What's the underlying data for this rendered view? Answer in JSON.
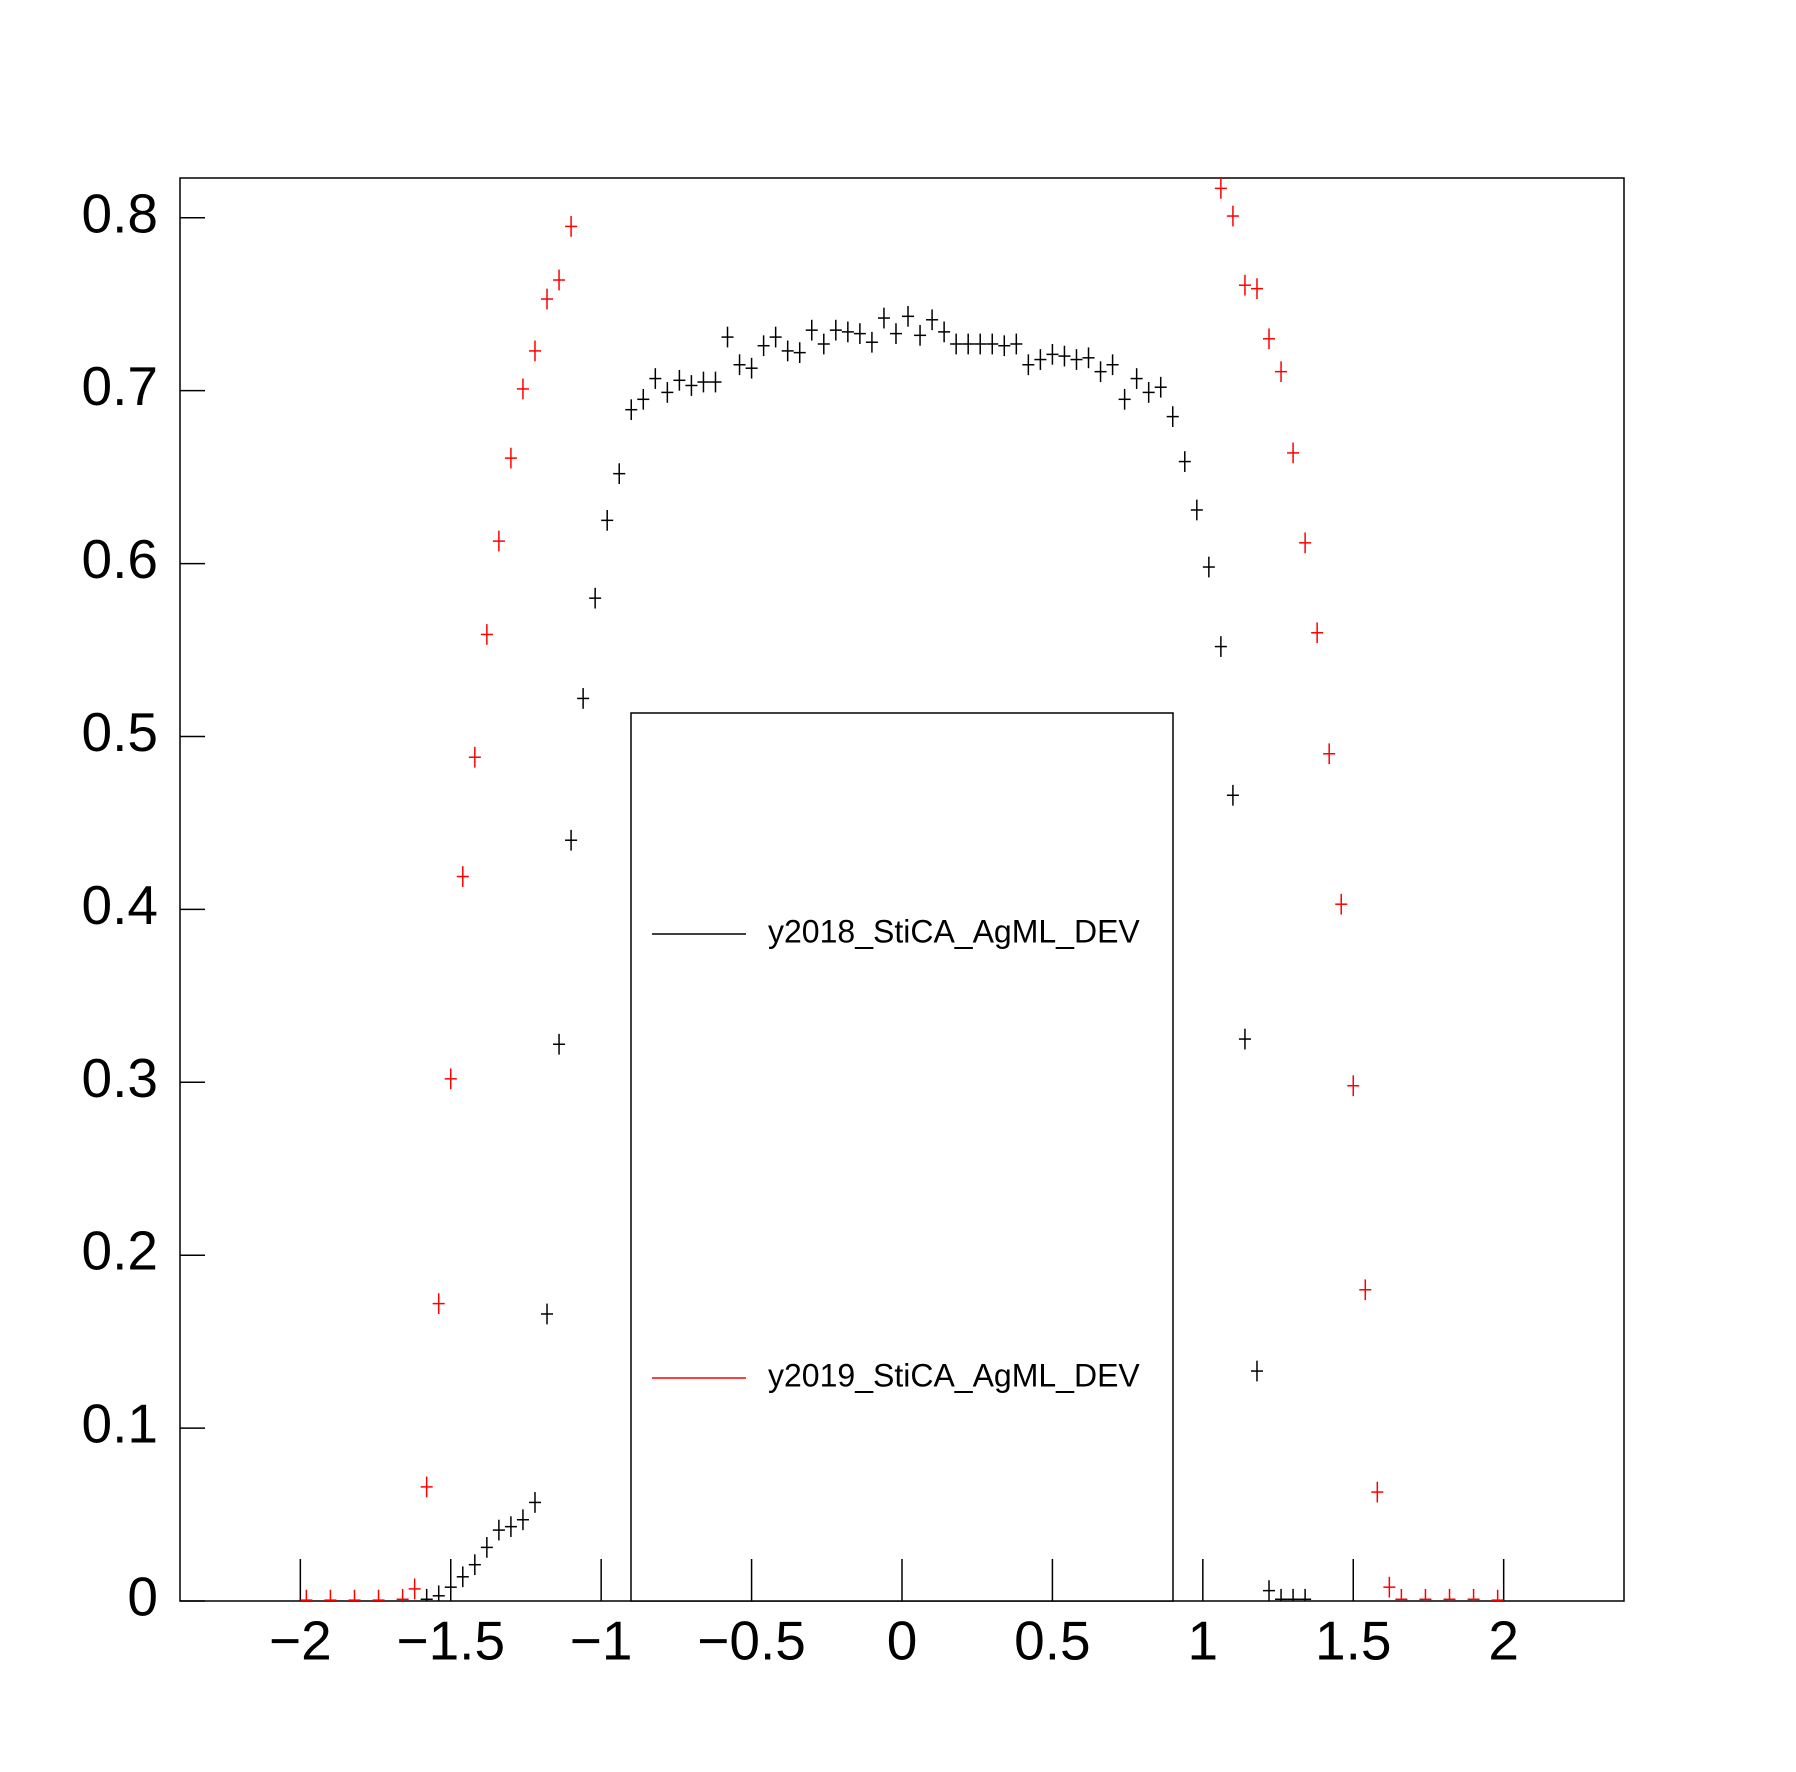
{
  "chart_data": {
    "type": "errorbar",
    "xlim": [
      -2.4,
      2.4
    ],
    "ylim": [
      0,
      0.823
    ],
    "xticks": [
      {
        "value": -2,
        "label": "−2"
      },
      {
        "value": -1.5,
        "label": "−1.5"
      },
      {
        "value": -1,
        "label": "−1"
      },
      {
        "value": -0.5,
        "label": "−0.5"
      },
      0,
      0.5,
      1,
      1.5,
      2
    ],
    "yticks": [
      0,
      0.1,
      0.2,
      0.3,
      0.4,
      0.5,
      0.6,
      0.7,
      0.8
    ],
    "series": [
      {
        "name": "y2018_StiCA_AgML_DEV",
        "color": "#000000",
        "xerr": 0.02,
        "yerr": 0.006,
        "x": [
          -1.58,
          -1.54,
          -1.5,
          -1.46,
          -1.42,
          -1.38,
          -1.34,
          -1.3,
          -1.26,
          -1.22,
          -1.18,
          -1.14,
          -1.1,
          -1.06,
          -1.02,
          -0.98,
          -0.94,
          -0.9,
          -0.86,
          -0.82,
          -0.78,
          -0.74,
          -0.7,
          -0.66,
          -0.62,
          -0.58,
          -0.54,
          -0.5,
          -0.46,
          -0.42,
          -0.38,
          -0.34,
          -0.3,
          -0.26,
          -0.22,
          -0.18,
          -0.14,
          -0.1,
          -0.06,
          -0.02,
          0.02,
          0.06,
          0.1,
          0.14,
          0.18,
          0.22,
          0.26,
          0.3,
          0.34,
          0.38,
          0.42,
          0.46,
          0.5,
          0.54,
          0.58,
          0.62,
          0.66,
          0.7,
          0.74,
          0.78,
          0.82,
          0.86,
          0.9,
          0.94,
          0.98,
          1.02,
          1.06,
          1.1,
          1.14,
          1.18,
          1.22,
          1.26,
          1.3,
          1.34
        ],
        "y": [
          0.001,
          0.003,
          0.008,
          0.014,
          0.021,
          0.031,
          0.041,
          0.043,
          0.047,
          0.057,
          0.166,
          0.322,
          0.44,
          0.522,
          0.58,
          0.625,
          0.652,
          0.689,
          0.695,
          0.707,
          0.699,
          0.706,
          0.703,
          0.705,
          0.705,
          0.731,
          0.715,
          0.713,
          0.726,
          0.731,
          0.723,
          0.722,
          0.735,
          0.727,
          0.735,
          0.734,
          0.733,
          0.728,
          0.742,
          0.733,
          0.743,
          0.732,
          0.741,
          0.734,
          0.727,
          0.727,
          0.727,
          0.727,
          0.726,
          0.727,
          0.715,
          0.718,
          0.721,
          0.72,
          0.718,
          0.719,
          0.711,
          0.715,
          0.695,
          0.707,
          0.699,
          0.702,
          0.685,
          0.659,
          0.631,
          0.598,
          0.552,
          0.466,
          0.325,
          0.133,
          0.006,
          0.001,
          0.001,
          0.001
        ]
      },
      {
        "name": "y2019_StiCA_AgML_DEV",
        "color": "#ff0000",
        "xerr": 0.02,
        "yerr": 0.006,
        "x": [
          -1.98,
          -1.9,
          -1.82,
          -1.74,
          -1.66,
          -1.62,
          -1.58,
          -1.54,
          -1.5,
          -1.46,
          -1.42,
          -1.38,
          -1.34,
          -1.3,
          -1.26,
          -1.22,
          -1.18,
          -1.14,
          -1.1,
          1.06,
          1.1,
          1.14,
          1.18,
          1.22,
          1.26,
          1.3,
          1.34,
          1.38,
          1.42,
          1.46,
          1.5,
          1.54,
          1.58,
          1.62,
          1.66,
          1.74,
          1.82,
          1.9,
          1.98
        ],
        "y": [
          0.0005,
          0.0005,
          0.0005,
          0.0005,
          0.001,
          0.007,
          0.066,
          0.172,
          0.302,
          0.419,
          0.488,
          0.559,
          0.613,
          0.661,
          0.701,
          0.723,
          0.753,
          0.764,
          0.795,
          0.817,
          0.801,
          0.761,
          0.759,
          0.73,
          0.711,
          0.664,
          0.612,
          0.56,
          0.49,
          0.403,
          0.298,
          0.18,
          0.063,
          0.008,
          0.001,
          0.001,
          0.001,
          0.001,
          0.0005
        ]
      }
    ]
  }
}
